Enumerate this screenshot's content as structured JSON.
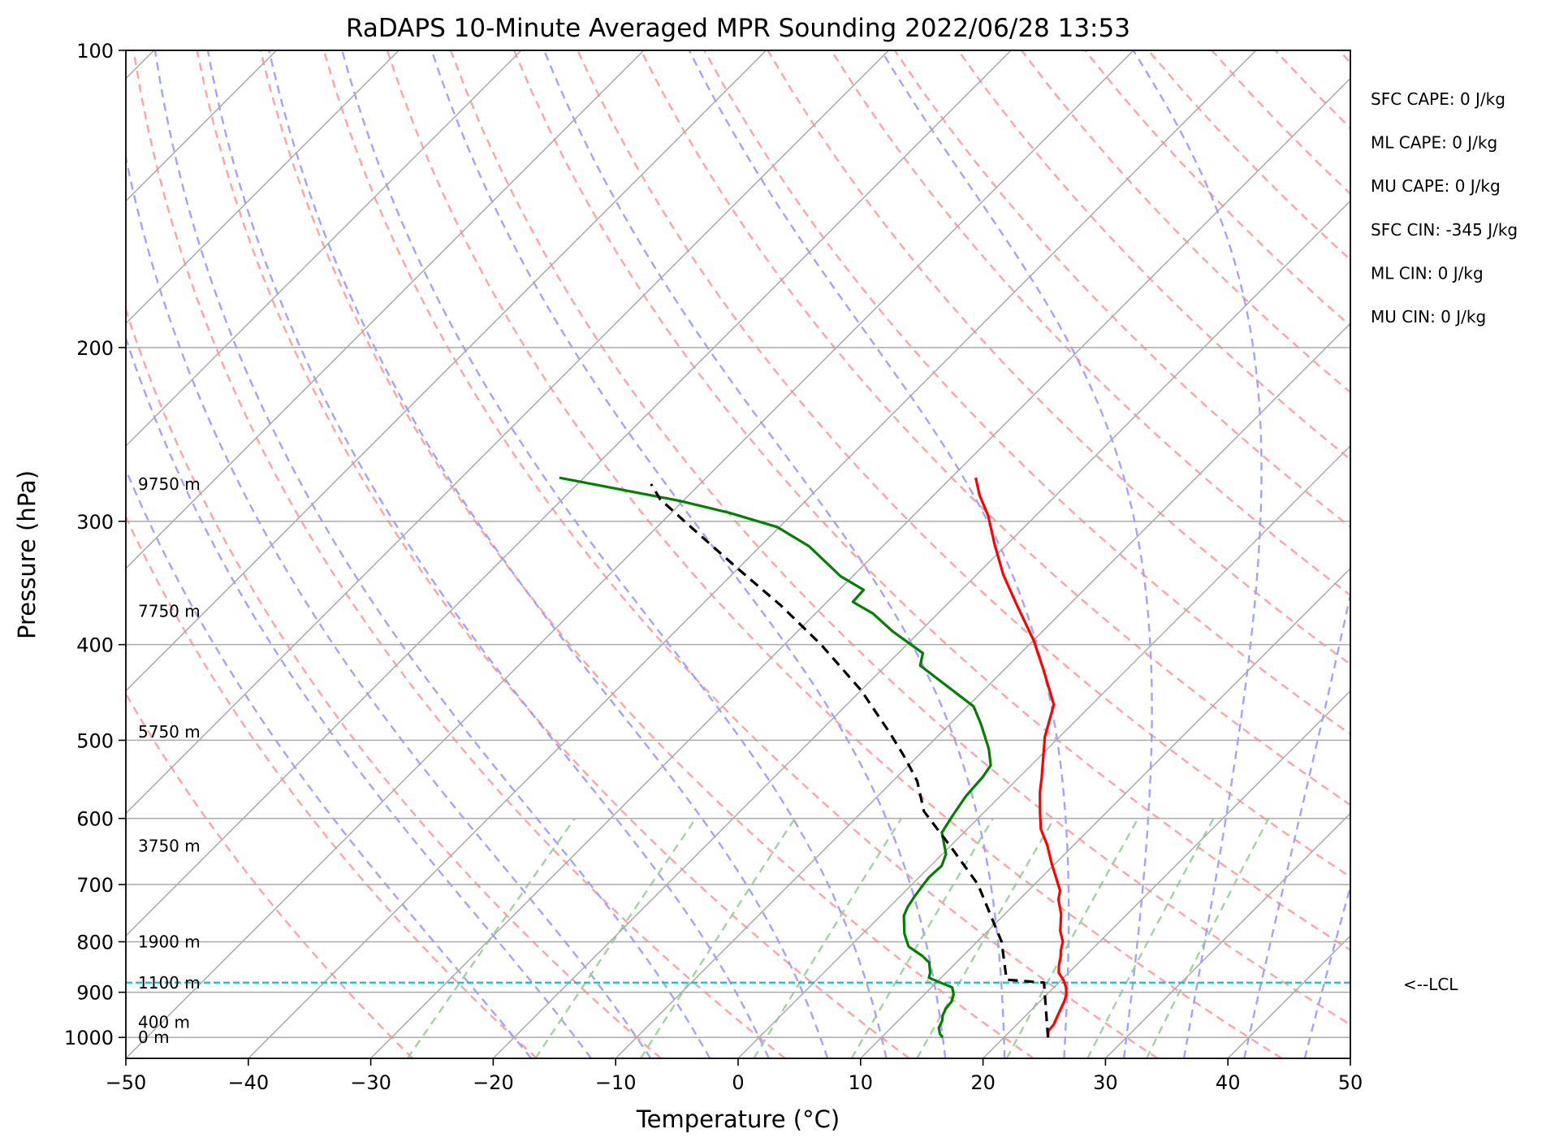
{
  "chart_data": {
    "type": "skew-t",
    "title": "RaDAPS 10-Minute Averaged MPR Sounding 2022/06/28 13:53",
    "xlabel": "Temperature (°C)",
    "ylabel": "Pressure (hPa)",
    "xlim": [
      -50,
      50
    ],
    "ylim": [
      1050,
      100
    ],
    "y_scale": "log",
    "x_ticks": [
      -50,
      -40,
      -30,
      -20,
      -10,
      0,
      10,
      20,
      30,
      40,
      50
    ],
    "x_tick_labels": [
      "−50",
      "−40",
      "−30",
      "−20",
      "−10",
      "0",
      "10",
      "20",
      "30",
      "40",
      "50"
    ],
    "y_ticks": [
      100,
      200,
      300,
      400,
      500,
      600,
      700,
      800,
      900,
      1000
    ],
    "y_tick_labels": [
      "100",
      "200",
      "300",
      "400",
      "500",
      "600",
      "700",
      "800",
      "900",
      "1000"
    ],
    "grid": true,
    "colors": {
      "temperature": "#ff0000",
      "dewpoint": "#008000",
      "parcel": "#000000",
      "lcl": "#17becf",
      "dry_adiabat": "#ff9999",
      "moist_adiabat": "#9999ff",
      "mixing_ratio": "#99cc99",
      "isotherm": "#aaaaaa"
    },
    "series": [
      {
        "key": "temperature",
        "points": [
          [
            23.6,
            1000
          ],
          [
            23.1,
            985
          ],
          [
            23.0,
            970
          ],
          [
            22.7,
            955
          ],
          [
            22.4,
            940
          ],
          [
            22.0,
            920
          ],
          [
            21.6,
            905
          ],
          [
            21.0,
            890
          ],
          [
            20.2,
            875
          ],
          [
            19.2,
            860
          ],
          [
            18.6,
            845
          ],
          [
            18.1,
            830
          ],
          [
            17.5,
            815
          ],
          [
            17.0,
            800
          ],
          [
            15.9,
            780
          ],
          [
            14.6,
            750
          ],
          [
            13.2,
            725
          ],
          [
            12.6,
            710
          ],
          [
            9.6,
            665
          ],
          [
            7.8,
            638
          ],
          [
            6.0,
            615
          ],
          [
            4.6,
            592
          ],
          [
            2.9,
            564
          ],
          [
            1.9,
            546
          ],
          [
            -0.3,
            510
          ],
          [
            -1.2,
            496
          ],
          [
            -3.1,
            460
          ],
          [
            -6.8,
            424
          ],
          [
            -10.0,
            396
          ],
          [
            -14.2,
            365
          ],
          [
            -17.8,
            340
          ],
          [
            -21.1,
            316
          ],
          [
            -23.9,
            296
          ],
          [
            -26.3,
            282
          ],
          [
            -28.0,
            271
          ]
        ]
      },
      {
        "key": "dewpoint",
        "points": [
          [
            15.0,
            1000
          ],
          [
            14.5,
            992
          ],
          [
            13.9,
            978
          ],
          [
            13.6,
            962
          ],
          [
            13.2,
            950
          ],
          [
            12.9,
            935
          ],
          [
            12.8,
            920
          ],
          [
            12.4,
            905
          ],
          [
            11.7,
            890
          ],
          [
            9.0,
            870
          ],
          [
            8.7,
            860
          ],
          [
            7.8,
            840
          ],
          [
            6.7,
            827
          ],
          [
            4.8,
            809
          ],
          [
            3.4,
            785
          ],
          [
            1.9,
            753
          ],
          [
            1.5,
            738
          ],
          [
            1.2,
            720
          ],
          [
            1.0,
            705
          ],
          [
            0.8,
            688
          ],
          [
            0.9,
            670
          ],
          [
            0.3,
            652
          ],
          [
            -0.8,
            635
          ],
          [
            -1.8,
            620
          ],
          [
            -2.3,
            596
          ],
          [
            -2.8,
            570
          ],
          [
            -3.0,
            544
          ],
          [
            -3.3,
            530
          ],
          [
            -4.8,
            510
          ],
          [
            -7.5,
            481
          ],
          [
            -9.5,
            462
          ],
          [
            -17.2,
            420
          ],
          [
            -18.0,
            408
          ],
          [
            -22.2,
            388
          ],
          [
            -25.3,
            372
          ],
          [
            -27.9,
            362
          ],
          [
            -28.0,
            352
          ],
          [
            -31.0,
            341
          ],
          [
            -36.0,
            318
          ],
          [
            -40.2,
            304
          ],
          [
            -45.3,
            294
          ],
          [
            -50.3,
            286
          ],
          [
            -62.0,
            271
          ]
        ]
      },
      {
        "key": "parcel",
        "points": [
          [
            23.6,
            1000
          ],
          [
            18.8,
            880
          ],
          [
            15.5,
            874
          ],
          [
            12.0,
            800
          ],
          [
            5.4,
            700
          ],
          [
            0.0,
            640
          ],
          [
            -5.0,
            590
          ],
          [
            -8.0,
            550
          ],
          [
            -11.0,
            520
          ],
          [
            -14.0,
            493
          ],
          [
            -20.0,
            445
          ],
          [
            -27.0,
            400
          ],
          [
            -33.5,
            365
          ],
          [
            -40.0,
            335
          ],
          [
            -47.0,
            305
          ],
          [
            -52.0,
            285
          ],
          [
            -54.0,
            275
          ]
        ]
      }
    ],
    "lcl": {
      "pressure": 880,
      "label": "<--LCL"
    },
    "height_labels": [
      {
        "text": "9750 m",
        "pressure": 275
      },
      {
        "text": "7750 m",
        "pressure": 370
      },
      {
        "text": "5750 m",
        "pressure": 490
      },
      {
        "text": "3750 m",
        "pressure": 640
      },
      {
        "text": "1900 m",
        "pressure": 800
      },
      {
        "text": "1100 m",
        "pressure": 880
      },
      {
        "text": "400 m",
        "pressure": 965
      },
      {
        "text": "0 m",
        "pressure": 1000
      }
    ]
  },
  "stats": [
    "SFC CAPE: 0 J/kg",
    "ML CAPE: 0 J/kg",
    "MU CAPE: 0 J/kg",
    "SFC CIN: -345 J/kg",
    "ML CIN: 0 J/kg",
    "MU CIN: 0 J/kg"
  ]
}
